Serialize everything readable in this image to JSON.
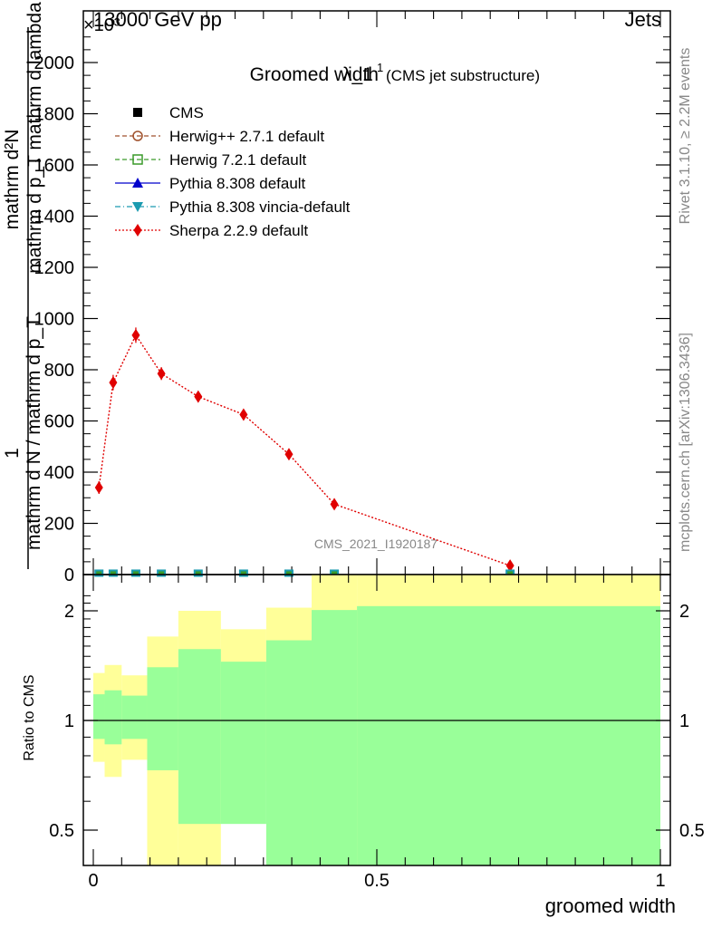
{
  "header": {
    "energy_label": "13000 GeV pp",
    "process_label": "Jets",
    "exponent_label": "×10³"
  },
  "side_labels": {
    "rivet": "Rivet 3.1.10, ≥ 2.2M events",
    "mcplots": "mcplots.cern.ch [arXiv:1306.3436]"
  },
  "chart_data": [
    {
      "type": "line",
      "title": "Groomed width",
      "title_symbol": "λ_1",
      "title_superscript": "1",
      "subtitle": "(CMS jet substructure)",
      "ylabel_num": "mathrm d²N",
      "ylabel_num_tail": "mathrm d p_T mathrm d lambda",
      "ylabel_one": "1",
      "ylabel_den": "mathrm d N / mathrm d p_T",
      "watermark": "CMS_2021_I1920187",
      "xlim": [
        0,
        1
      ],
      "ylim": [
        0,
        2100
      ],
      "yticks": [
        {
          "v": 0,
          "label": "0"
        },
        {
          "v": 200,
          "label": "200"
        },
        {
          "v": 400,
          "label": "400"
        },
        {
          "v": 600,
          "label": "600"
        },
        {
          "v": 800,
          "label": "800"
        },
        {
          "v": 1000,
          "label": "1000"
        },
        {
          "v": 1200,
          "label": "1200"
        },
        {
          "v": 1400,
          "label": "1400"
        },
        {
          "v": 1600,
          "label": "1600"
        },
        {
          "v": 1800,
          "label": "1800"
        },
        {
          "v": 2000,
          "label": "2000"
        }
      ],
      "legend": [
        {
          "name": "CMS",
          "color": "#000000",
          "marker": "square-filled",
          "line": "none"
        },
        {
          "name": "Herwig++ 2.7.1 default",
          "color": "#a0522d",
          "marker": "circle-open",
          "line": "dashed"
        },
        {
          "name": "Herwig 7.2.1 default",
          "color": "#3a9a2a",
          "marker": "square-open",
          "line": "dashed"
        },
        {
          "name": "Pythia 8.308 default",
          "color": "#0000cc",
          "marker": "triangle-up",
          "line": "solid"
        },
        {
          "name": "Pythia 8.308 vincia-default",
          "color": "#1b9bb0",
          "marker": "triangle-down",
          "line": "dashdot"
        },
        {
          "name": "Sherpa 2.2.9 default",
          "color": "#e00000",
          "marker": "diamond",
          "line": "dotted"
        }
      ],
      "series": [
        {
          "name": "CMS",
          "x": [
            0.01,
            0.035,
            0.075,
            0.12,
            0.185,
            0.265,
            0.345,
            0.425,
            0.735
          ],
          "values": [
            2,
            2,
            2,
            2,
            2,
            2,
            2,
            2,
            2
          ]
        },
        {
          "name": "Sherpa 2.2.9 default",
          "x": [
            0.01,
            0.035,
            0.075,
            0.12,
            0.185,
            0.265,
            0.345,
            0.425,
            0.735
          ],
          "values": [
            340,
            750,
            935,
            785,
            695,
            625,
            470,
            275,
            35
          ],
          "errors": [
            25,
            30,
            30,
            25,
            15,
            12,
            12,
            10,
            5
          ]
        }
      ]
    },
    {
      "type": "area",
      "ylabel": "Ratio to CMS",
      "xlabel": "groomed width",
      "xlim": [
        0,
        1
      ],
      "ylim": [
        0.4,
        2.3
      ],
      "ylog": true,
      "xticks": [
        {
          "v": 0,
          "label": "0"
        },
        {
          "v": 0.5,
          "label": "0.5"
        },
        {
          "v": 1,
          "label": "1"
        }
      ],
      "yticks": [
        {
          "v": 0.5,
          "label": "0.5"
        },
        {
          "v": 1,
          "label": "1"
        },
        {
          "v": 2,
          "label": "2"
        }
      ],
      "reference_line": 1,
      "bands": {
        "bin_edges": [
          0,
          0.02,
          0.05,
          0.095,
          0.15,
          0.225,
          0.305,
          0.385,
          0.465,
          1
        ],
        "outer_color": "#ffff99",
        "inner_color": "#99ff99",
        "outer_up": [
          1.35,
          1.42,
          1.33,
          1.7,
          2.0,
          1.78,
          2.04,
          2.6,
          2.6
        ],
        "outer_down": [
          0.77,
          0.7,
          0.78,
          0.3,
          0.3,
          0.68,
          0.3,
          0.38,
          0.3
        ],
        "inner_up": [
          1.18,
          1.21,
          1.17,
          1.4,
          1.57,
          1.45,
          1.66,
          2.01,
          2.06
        ],
        "inner_down": [
          0.89,
          0.86,
          0.89,
          0.73,
          0.52,
          0.52,
          0.3,
          0.3,
          0.3
        ]
      }
    }
  ]
}
